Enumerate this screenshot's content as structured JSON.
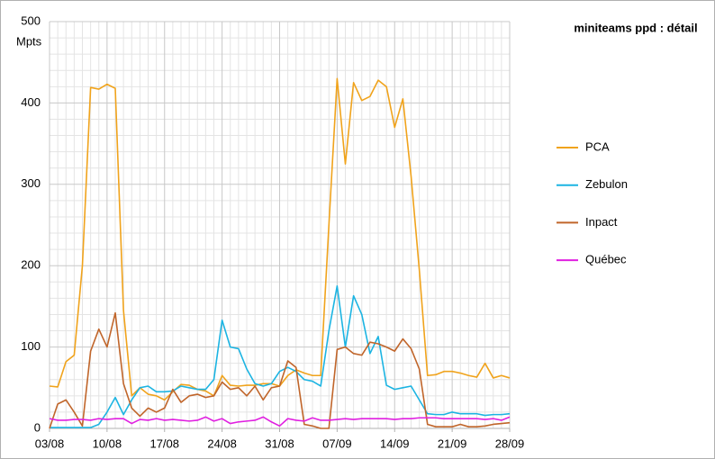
{
  "chart_data": {
    "type": "line",
    "title": "miniteams ppd : détail",
    "y_label": "Mpts",
    "categories": [
      "03/08",
      null,
      null,
      null,
      null,
      null,
      null,
      "10/08",
      null,
      null,
      null,
      null,
      null,
      null,
      "17/08",
      null,
      null,
      null,
      null,
      null,
      null,
      "24/08",
      null,
      null,
      null,
      null,
      null,
      null,
      "31/08",
      null,
      null,
      null,
      null,
      null,
      null,
      "07/09",
      null,
      null,
      null,
      null,
      null,
      null,
      "14/09",
      null,
      null,
      null,
      null,
      null,
      null,
      "21/09",
      null,
      null,
      null,
      null,
      null,
      null,
      "28/09"
    ],
    "series": [
      {
        "name": "PCA",
        "color": "#f0a31c",
        "values": [
          52,
          51,
          82,
          90,
          200,
          419,
          417,
          423,
          418,
          145,
          40,
          50,
          42,
          40,
          35,
          45,
          54,
          53,
          48,
          46,
          40,
          65,
          53,
          52,
          53,
          53,
          55,
          55,
          52,
          65,
          72,
          68,
          65,
          65,
          250,
          430,
          325,
          425,
          403,
          408,
          428,
          420,
          370,
          405,
          310,
          195,
          65,
          66,
          70,
          70,
          68,
          65,
          63,
          80,
          62,
          65,
          62
        ]
      },
      {
        "name": "Zebulon",
        "color": "#1cb4e2",
        "values": [
          1,
          1,
          1,
          1,
          1,
          1,
          5,
          20,
          38,
          17,
          35,
          50,
          52,
          45,
          45,
          46,
          52,
          50,
          48,
          48,
          60,
          133,
          100,
          98,
          73,
          55,
          52,
          55,
          70,
          75,
          70,
          60,
          58,
          52,
          120,
          175,
          100,
          163,
          140,
          92,
          113,
          53,
          48,
          50,
          52,
          35,
          18,
          17,
          17,
          20,
          18,
          18,
          18,
          16,
          17,
          17,
          18
        ]
      },
      {
        "name": "Inpact",
        "color": "#c0652a",
        "values": [
          0,
          30,
          35,
          20,
          3,
          95,
          122,
          100,
          142,
          55,
          25,
          15,
          25,
          20,
          25,
          48,
          32,
          40,
          42,
          38,
          40,
          57,
          48,
          50,
          40,
          52,
          35,
          50,
          52,
          83,
          75,
          5,
          3,
          0,
          0,
          97,
          100,
          92,
          90,
          106,
          104,
          100,
          95,
          110,
          98,
          73,
          5,
          2,
          2,
          2,
          5,
          2,
          2,
          3,
          5,
          6,
          7
        ]
      },
      {
        "name": "Québec",
        "color": "#e020e0",
        "values": [
          12,
          10,
          10,
          11,
          11,
          10,
          12,
          11,
          12,
          12,
          6,
          11,
          10,
          12,
          10,
          11,
          10,
          9,
          10,
          14,
          9,
          12,
          6,
          8,
          9,
          10,
          14,
          8,
          3,
          12,
          10,
          9,
          13,
          10,
          10,
          11,
          12,
          11,
          12,
          12,
          12,
          12,
          11,
          12,
          12,
          13,
          13,
          13,
          12,
          12,
          12,
          12,
          12,
          11,
          12,
          10,
          14
        ]
      }
    ],
    "ylim": [
      0,
      500
    ],
    "yticks": [
      0,
      100,
      200,
      300,
      400,
      500
    ],
    "grid": true,
    "legend": "right"
  }
}
